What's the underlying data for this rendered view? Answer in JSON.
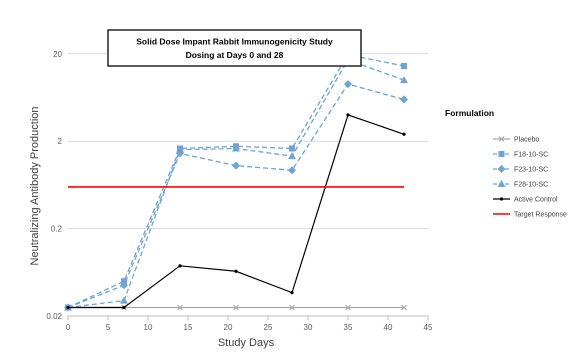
{
  "chart_data": {
    "type": "line",
    "title_lines": [
      "Solid Dose Impant Rabbit Immunogenicity Study",
      "Dosing at Days 0 and 28"
    ],
    "xlabel": "Study Days",
    "ylabel": "Neutralizing Antibody Production",
    "xlim": [
      0,
      45
    ],
    "x_ticks": [
      0,
      5,
      10,
      15,
      20,
      25,
      30,
      35,
      40,
      45
    ],
    "y_scale": "log",
    "ylim": [
      0.02,
      50
    ],
    "y_ticks": [
      0.02,
      0.2,
      2,
      20
    ],
    "y_tick_labels": [
      "0.02",
      "0.2",
      "2",
      "20"
    ],
    "grid": "horizontal",
    "legend_title": "Formulation",
    "legend_position": "right",
    "x": [
      0,
      7,
      14,
      21,
      28,
      35,
      42
    ],
    "series": [
      {
        "name": "Placebo",
        "color": "#a6a6a6",
        "marker": "x",
        "dash": "solid",
        "values": [
          0.025,
          0.025,
          0.025,
          0.025,
          0.025,
          0.025,
          0.025
        ]
      },
      {
        "name": "F18-10-SC",
        "color": "#6fa3d6",
        "marker": "square",
        "dash": "dashed",
        "values": [
          0.025,
          0.05,
          1.65,
          1.75,
          1.65,
          19.5,
          14.5
        ]
      },
      {
        "name": "F23-10-SC",
        "color": "#6fa3d6",
        "marker": "diamond",
        "dash": "dashed",
        "values": [
          0.025,
          0.045,
          1.45,
          1.05,
          0.93,
          9.0,
          6.0
        ]
      },
      {
        "name": "F28-10-SC",
        "color": "#6fa3d6",
        "marker": "triangle",
        "dash": "dashed",
        "values": [
          0.025,
          0.03,
          1.6,
          1.65,
          1.35,
          17.0,
          10.0
        ]
      },
      {
        "name": "Active Control",
        "color": "#000000",
        "marker": "dot",
        "dash": "solid",
        "values": [
          0.025,
          0.025,
          0.075,
          0.065,
          0.037,
          4.0,
          2.4
        ]
      },
      {
        "name": "Target Response",
        "color": "#ff0000",
        "marker": "none",
        "dash": "solid",
        "values": [
          0.6,
          0.6,
          0.6,
          0.6,
          0.6,
          0.6,
          0.6
        ],
        "line_x": [
          0,
          42
        ]
      }
    ]
  }
}
